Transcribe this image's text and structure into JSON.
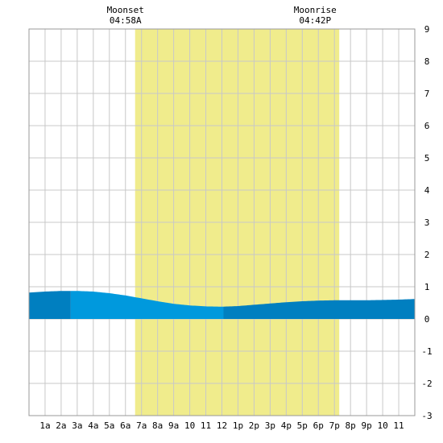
{
  "chart_data": {
    "type": "area",
    "title": "",
    "xlabel": "",
    "ylabel": "",
    "xlim": [
      0,
      24
    ],
    "ylim": [
      -3,
      9
    ],
    "grid": true,
    "x_ticks": [
      "1a",
      "2a",
      "3a",
      "4a",
      "5a",
      "6a",
      "7a",
      "8a",
      "9a",
      "10",
      "11",
      "12",
      "1p",
      "2p",
      "3p",
      "4p",
      "5p",
      "6p",
      "7p",
      "8p",
      "9p",
      "10",
      "11"
    ],
    "y_ticks": [
      -3,
      -2,
      -1,
      0,
      1,
      2,
      3,
      4,
      5,
      6,
      7,
      8,
      9
    ],
    "daylight": {
      "start_hour": 6.6,
      "end_hour": 19.3
    },
    "annotations": [
      {
        "line1": "Moonset",
        "line2": "04:58A",
        "hour": 6.0
      },
      {
        "line1": "Moonrise",
        "line2": "04:42P",
        "hour": 17.8
      }
    ],
    "series": [
      {
        "x": [
          0,
          1,
          2,
          3,
          4,
          5,
          6,
          7,
          8,
          9,
          10,
          11,
          12,
          13,
          14,
          15,
          16,
          17,
          18,
          19,
          20,
          21,
          22,
          23,
          24
        ],
        "values": [
          0.82,
          0.85,
          0.87,
          0.87,
          0.85,
          0.8,
          0.73,
          0.64,
          0.55,
          0.47,
          0.42,
          0.39,
          0.38,
          0.4,
          0.44,
          0.48,
          0.52,
          0.55,
          0.57,
          0.58,
          0.58,
          0.58,
          0.59,
          0.6,
          0.62
        ]
      }
    ],
    "colors": {
      "daylight": "#f0ec8c",
      "grid": "#c8c8c8",
      "tide_light": "#0099dd",
      "tide_dark": "#007fc0"
    }
  }
}
